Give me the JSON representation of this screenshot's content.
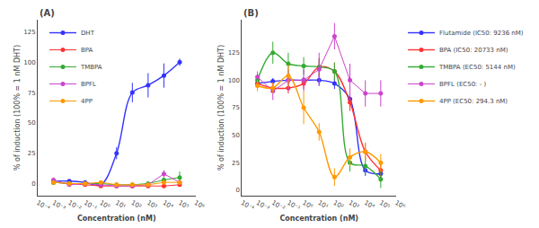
{
  "chart_data": [
    {
      "type": "scatter",
      "title": "(A)",
      "x_label": "Concentration (nM)",
      "y_label": "% of induction (100% = 1 nM DHT)",
      "log": "x",
      "grid": false,
      "legend": "upper left",
      "marker": "circle",
      "xlim": [
        0.0001,
        1000000.0
      ],
      "xticks": [
        {
          "value": 0.0001,
          "label": "10⁻⁴"
        },
        {
          "value": 0.001,
          "label": "10⁻³"
        },
        {
          "value": 0.01,
          "label": "10⁻²"
        },
        {
          "value": 0.1,
          "label": "10⁻¹"
        },
        {
          "value": 1.0,
          "label": "10⁰"
        },
        {
          "value": 10.0,
          "label": "10¹"
        },
        {
          "value": 100.0,
          "label": "10²"
        },
        {
          "value": 1000.0,
          "label": "10³"
        },
        {
          "value": 10000.0,
          "label": "10⁴"
        },
        {
          "value": 100000.0,
          "label": "10⁵"
        },
        {
          "value": 1000000.0,
          "label": "10⁶"
        }
      ],
      "ylim": [
        -10,
        135
      ],
      "yticks": [
        0,
        25,
        50,
        75,
        100,
        125
      ],
      "x": [
        0.001,
        0.01,
        0.1,
        1.0,
        10.0,
        100.0,
        1000.0,
        10000.0,
        100000.0
      ],
      "series": [
        {
          "name": "DHT",
          "color": "#3333FF",
          "line_style": "smooth",
          "values": [
            2,
            2,
            1,
            -1,
            25,
            75,
            81,
            89,
            100
          ],
          "errors": [
            1,
            1,
            1,
            2,
            5,
            8,
            10,
            10,
            3
          ]
        },
        {
          "name": "BPA",
          "color": "#FF3333",
          "line_style": "solid",
          "values": [
            1,
            0,
            -1,
            -2,
            -2,
            -2,
            -2,
            -2,
            -1
          ],
          "errors": [
            1,
            1,
            1,
            1,
            1,
            1,
            1,
            1,
            1
          ]
        },
        {
          "name": "TMBPA",
          "color": "#33AA33",
          "line_style": "solid",
          "values": [
            1,
            0,
            0,
            0,
            -1,
            -1,
            0,
            3,
            5
          ],
          "errors": [
            1,
            1,
            1,
            1,
            1,
            1,
            1,
            2,
            5
          ]
        },
        {
          "name": "BPFL",
          "color": "#CC44CC",
          "line_style": "solid",
          "values": [
            3,
            -1,
            0,
            -1,
            -2,
            -2,
            -1,
            8,
            1
          ],
          "errors": [
            2,
            1,
            1,
            1,
            1,
            1,
            1,
            3,
            2
          ]
        },
        {
          "name": "4PP",
          "color": "#FF9900",
          "line_style": "solid",
          "values": [
            1,
            0,
            0,
            1,
            -1,
            -1,
            -1,
            1,
            1
          ],
          "errors": [
            1,
            1,
            1,
            1,
            1,
            1,
            1,
            1,
            1
          ]
        }
      ]
    },
    {
      "type": "scatter",
      "title": "(B)",
      "x_label": "Concentration (nM)",
      "y_label": "% of induction (100% = 1 nM DHT)",
      "log": "x",
      "grid": false,
      "legend": "upper right",
      "marker": "circle",
      "xlim": [
        0.0001,
        1000000.0
      ],
      "xticks": [
        {
          "value": 0.0001,
          "label": "10⁻⁴"
        },
        {
          "value": 0.001,
          "label": "10⁻³"
        },
        {
          "value": 0.01,
          "label": "10⁻²"
        },
        {
          "value": 0.1,
          "label": "10⁻¹"
        },
        {
          "value": 1.0,
          "label": "10⁰"
        },
        {
          "value": 10.0,
          "label": "10¹"
        },
        {
          "value": 100.0,
          "label": "10²"
        },
        {
          "value": 1000.0,
          "label": "10³"
        },
        {
          "value": 10000.0,
          "label": "10⁴"
        },
        {
          "value": 100000.0,
          "label": "10⁵"
        },
        {
          "value": 1000000.0,
          "label": "10⁶"
        }
      ],
      "ylim": [
        -5,
        155
      ],
      "yticks": [
        0,
        25,
        50,
        75,
        100,
        125
      ],
      "x": [
        0.001,
        0.01,
        0.1,
        1.0,
        10.0,
        100.0,
        1000.0,
        10000.0,
        100000.0
      ],
      "series": [
        {
          "name": "Flutamide (IC50: 9236 nM)",
          "color": "#3333FF",
          "line_style": "smooth",
          "values": [
            97,
            99,
            100,
            100,
            100,
            97,
            83,
            18,
            15
          ],
          "errors": [
            3,
            3,
            4,
            3,
            5,
            5,
            5,
            5,
            5
          ]
        },
        {
          "name": "BPA (IC50: 20733 nM)",
          "color": "#FF3333",
          "line_style": "smooth",
          "values": [
            97,
            93,
            93,
            97,
            112,
            108,
            80,
            35,
            18
          ],
          "errors": [
            4,
            4,
            5,
            5,
            8,
            8,
            8,
            8,
            8
          ]
        },
        {
          "name": "TMBPA (EC50: 5144 nM)",
          "color": "#33AA33",
          "line_style": "smooth",
          "values": [
            100,
            125,
            115,
            113,
            112,
            108,
            25,
            22,
            10
          ],
          "errors": [
            5,
            10,
            10,
            8,
            8,
            8,
            8,
            8,
            8
          ]
        },
        {
          "name": "BPFL (EC50: - )",
          "color": "#CC44CC",
          "line_style": "solid",
          "values": [
            103,
            90,
            100,
            100,
            110,
            140,
            100,
            88,
            88
          ],
          "errors": [
            5,
            8,
            10,
            10,
            15,
            12,
            15,
            12,
            12
          ]
        },
        {
          "name": "4PP (EC50: 294.3 nM)",
          "color": "#FF9900",
          "line_style": "smooth",
          "values": [
            95,
            93,
            104,
            75,
            53,
            12,
            30,
            35,
            25
          ],
          "errors": [
            5,
            5,
            10,
            15,
            8,
            8,
            8,
            8,
            8
          ]
        }
      ]
    }
  ]
}
